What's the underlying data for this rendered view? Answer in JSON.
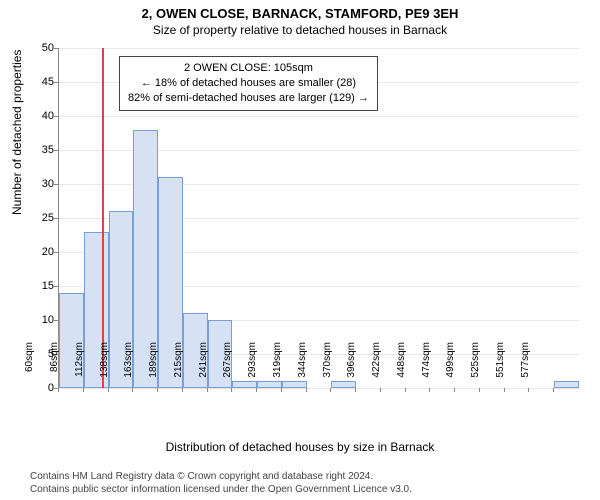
{
  "title": "2, OWEN CLOSE, BARNACK, STAMFORD, PE9 3EH",
  "subtitle": "Size of property relative to detached houses in Barnack",
  "ylabel": "Number of detached properties",
  "xlabel": "Distribution of detached houses by size in Barnack",
  "footer_line1": "Contains HM Land Registry data © Crown copyright and database right 2024.",
  "footer_line2": "Contains public sector information licensed under the Open Government Licence v3.0.",
  "annotation": {
    "line1": "2 OWEN CLOSE: 105sqm",
    "line2": "← 18% of detached houses are smaller (28)",
    "line3": "82% of semi-detached houses are larger (129) →"
  },
  "chart": {
    "type": "histogram",
    "ylim": [
      0,
      50
    ],
    "yticks": [
      0,
      5,
      10,
      15,
      20,
      25,
      30,
      35,
      40,
      45,
      50
    ],
    "x_tick_labels": [
      "60sqm",
      "86sqm",
      "112sqm",
      "138sqm",
      "163sqm",
      "189sqm",
      "215sqm",
      "241sqm",
      "267sqm",
      "293sqm",
      "319sqm",
      "344sqm",
      "370sqm",
      "396sqm",
      "422sqm",
      "448sqm",
      "474sqm",
      "499sqm",
      "525sqm",
      "551sqm",
      "577sqm"
    ],
    "bar_values": [
      14,
      23,
      26,
      38,
      31,
      11,
      10,
      1,
      1,
      1,
      0,
      1,
      0,
      0,
      0,
      0,
      0,
      0,
      0,
      0,
      1
    ],
    "marker_x_value": 105,
    "x_min": 60,
    "x_step": 25.85,
    "bar_color": "#d6e2f3",
    "bar_border": "#7a9ed6",
    "grid_color": "#e8e8e8",
    "marker_color": "#d44",
    "background_color": "#ffffff",
    "title_fontsize": 13,
    "subtitle_fontsize": 12,
    "label_fontsize": 12,
    "tick_fontsize": 10
  }
}
